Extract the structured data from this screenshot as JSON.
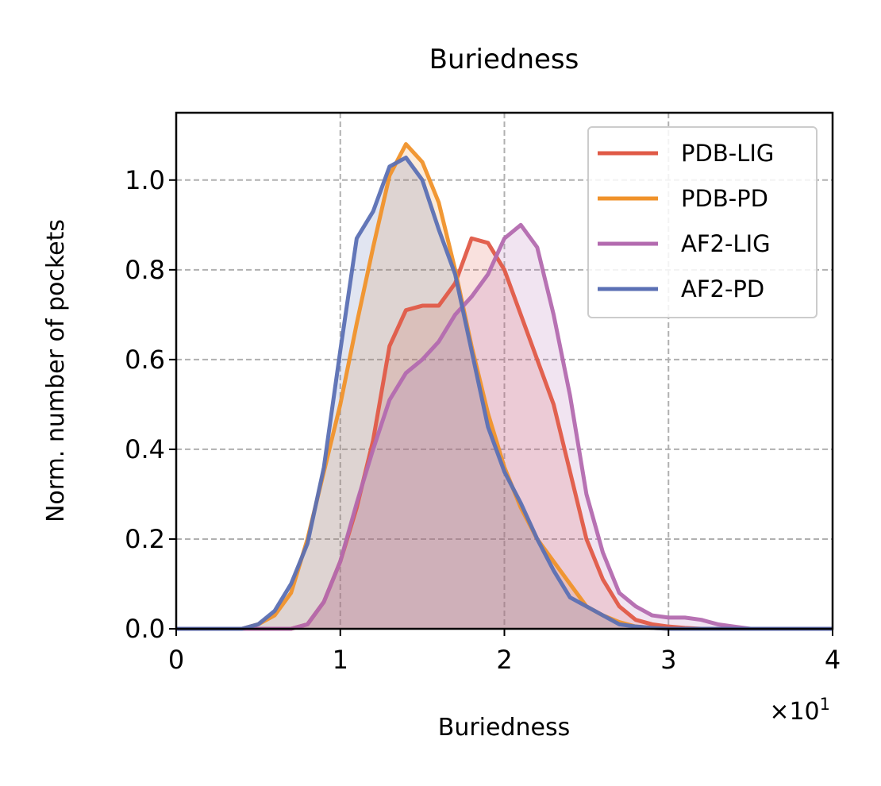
{
  "chart_data": {
    "type": "area",
    "title": "Buriedness",
    "xlabel": "Buriedness",
    "ylabel": "Norm. number of pockets",
    "x_offset_text": "×10^1",
    "xlim": [
      0,
      4
    ],
    "ylim": [
      0,
      1.15
    ],
    "xticks": [
      0,
      1,
      2,
      3,
      4
    ],
    "yticks": [
      0.0,
      0.2,
      0.4,
      0.6,
      0.8,
      1.0
    ],
    "xtick_labels": [
      "0",
      "1",
      "2",
      "3",
      "4"
    ],
    "ytick_labels": [
      "0.0",
      "0.2",
      "0.4",
      "0.6",
      "0.8",
      "1.0"
    ],
    "grid": true,
    "legend_position": "top-right",
    "x": [
      0,
      0.1,
      0.2,
      0.3,
      0.4,
      0.5,
      0.6,
      0.7,
      0.8,
      0.9,
      1.0,
      1.1,
      1.2,
      1.3,
      1.4,
      1.5,
      1.6,
      1.7,
      1.8,
      1.9,
      2.0,
      2.1,
      2.2,
      2.3,
      2.4,
      2.5,
      2.6,
      2.7,
      2.8,
      2.9,
      3.0,
      3.1,
      3.2,
      3.3,
      3.4,
      3.5,
      3.6,
      3.7,
      3.8,
      3.9,
      4.0
    ],
    "series": [
      {
        "name": "PDB-LIG",
        "color": "#e05a47",
        "values": [
          0,
          0,
          0,
          0,
          0,
          0,
          0,
          0,
          0.01,
          0.06,
          0.15,
          0.27,
          0.42,
          0.63,
          0.71,
          0.72,
          0.72,
          0.77,
          0.87,
          0.86,
          0.8,
          0.7,
          0.6,
          0.5,
          0.35,
          0.2,
          0.11,
          0.05,
          0.02,
          0.01,
          0.005,
          0.002,
          0,
          0,
          0,
          0,
          0,
          0,
          0,
          0,
          0
        ]
      },
      {
        "name": "PDB-PD",
        "color": "#f0922a",
        "values": [
          0,
          0,
          0,
          0,
          0,
          0.01,
          0.03,
          0.08,
          0.2,
          0.35,
          0.5,
          0.68,
          0.85,
          1.01,
          1.08,
          1.04,
          0.95,
          0.8,
          0.63,
          0.48,
          0.36,
          0.27,
          0.2,
          0.15,
          0.1,
          0.05,
          0.03,
          0.015,
          0.005,
          0.002,
          0,
          0,
          0,
          0,
          0,
          0,
          0,
          0,
          0,
          0,
          0
        ]
      },
      {
        "name": "AF2-LIG",
        "color": "#b36aaf",
        "values": [
          0,
          0,
          0,
          0,
          0,
          0,
          0,
          0,
          0.01,
          0.06,
          0.15,
          0.28,
          0.4,
          0.51,
          0.57,
          0.6,
          0.64,
          0.7,
          0.74,
          0.79,
          0.87,
          0.9,
          0.85,
          0.7,
          0.52,
          0.3,
          0.17,
          0.08,
          0.05,
          0.03,
          0.025,
          0.025,
          0.02,
          0.01,
          0.005,
          0,
          0,
          0,
          0,
          0,
          0
        ]
      },
      {
        "name": "AF2-PD",
        "color": "#5b70b4",
        "values": [
          0,
          0,
          0,
          0,
          0,
          0.01,
          0.04,
          0.1,
          0.19,
          0.36,
          0.62,
          0.87,
          0.93,
          1.03,
          1.05,
          1.0,
          0.89,
          0.79,
          0.62,
          0.45,
          0.35,
          0.28,
          0.2,
          0.13,
          0.07,
          0.05,
          0.03,
          0.01,
          0.005,
          0.002,
          0,
          0,
          0,
          0,
          0,
          0,
          0,
          0,
          0,
          0,
          0
        ]
      }
    ]
  }
}
